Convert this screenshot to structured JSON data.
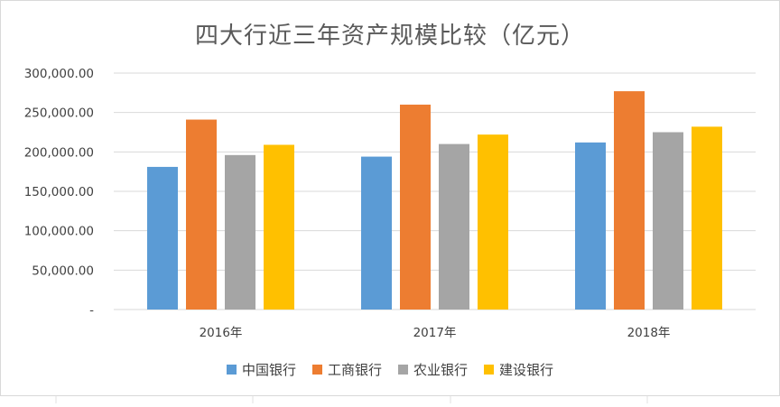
{
  "chart_data": {
    "type": "bar",
    "title": "四大行近三年资产规模比较（亿元）",
    "categories": [
      "2016年",
      "2017年",
      "2018年"
    ],
    "series": [
      {
        "name": "中国银行",
        "color": "#5b9bd5",
        "values": [
          181000,
          194000,
          212000
        ]
      },
      {
        "name": "工商银行",
        "color": "#ed7d31",
        "values": [
          241000,
          260000,
          277000
        ]
      },
      {
        "name": "农业银行",
        "color": "#a5a5a5",
        "values": [
          196000,
          210000,
          225000
        ]
      },
      {
        "name": "建设银行",
        "color": "#ffc000",
        "values": [
          209000,
          222000,
          232000
        ]
      }
    ],
    "ylim": [
      0,
      300000
    ],
    "yticks": [
      0,
      50000,
      100000,
      150000,
      200000,
      250000,
      300000
    ],
    "ytick_labels": [
      "-",
      "50,000.00",
      "100,000.00",
      "150,000.00",
      "200,000.00",
      "250,000.00",
      "300,000.00"
    ],
    "grid": true,
    "legend_position": "bottom"
  }
}
